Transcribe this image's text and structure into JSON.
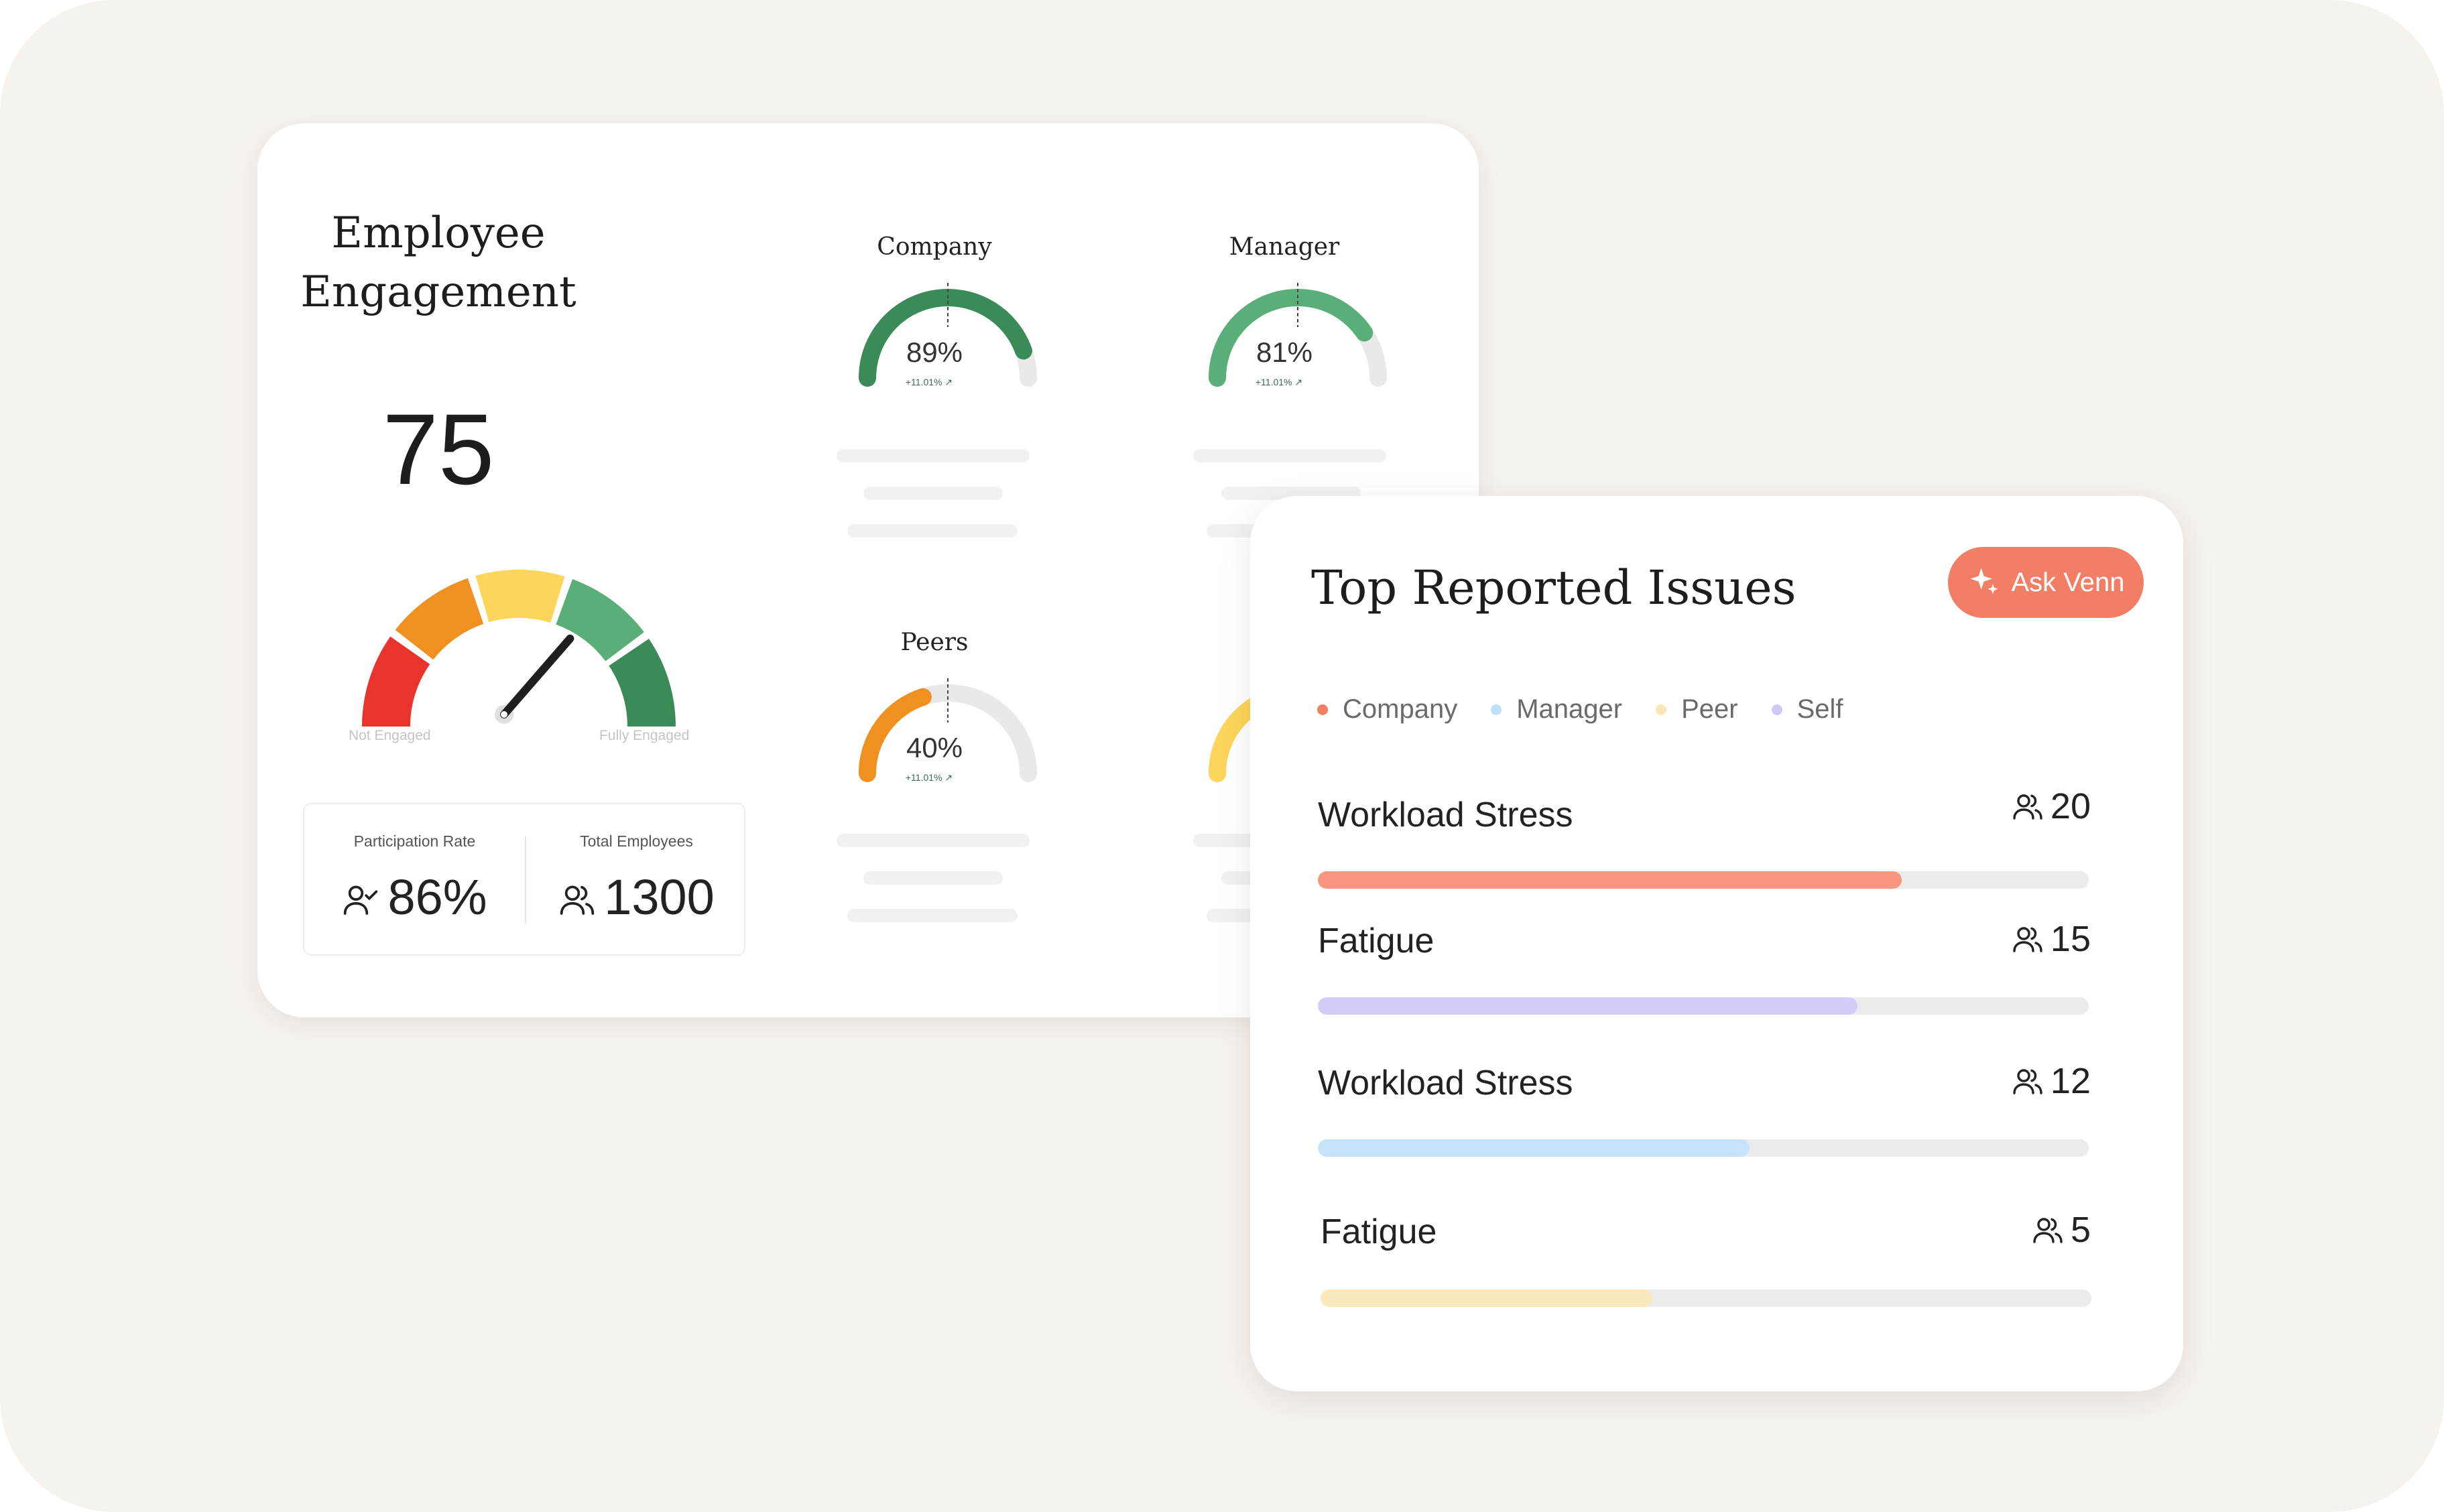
{
  "engagement": {
    "title_line1": "Employee",
    "title_line2": "Engagement",
    "score": "75",
    "gauge_level": 0.75,
    "gauge_min_label": "Not Engaged",
    "gauge_max_label": "Fully Engaged",
    "segment_colors": [
      "#e8342b",
      "#ef9020",
      "#fdd55a",
      "#5aae78",
      "#3a8b57"
    ],
    "participation_label": "Participation Rate",
    "participation_value": "86%",
    "total_label": "Total Employees",
    "total_value": "1300"
  },
  "mini_gauges": {
    "company": {
      "title": "Company",
      "pct": "89%",
      "value": 0.89,
      "delta": "+11.01%",
      "color": "#3a8b57"
    },
    "manager": {
      "title": "Manager",
      "pct": "81%",
      "value": 0.81,
      "delta": "+11.01%",
      "color": "#5aae78"
    },
    "peers": {
      "title": "Peers",
      "pct": "40%",
      "value": 0.4,
      "delta": "+11.01%",
      "color": "#ef9020"
    },
    "self": {
      "value": 0.55,
      "color": "#fdd55a"
    }
  },
  "issues": {
    "title": "Top Reported Issues",
    "ask_button": "Ask Venn",
    "legend": [
      {
        "label": "Company",
        "color": "#f27e66"
      },
      {
        "label": "Manager",
        "color": "#bfe0fb"
      },
      {
        "label": "Peer",
        "color": "#fbe6b8"
      },
      {
        "label": "Self",
        "color": "#cfc8f7"
      }
    ],
    "items": [
      {
        "label": "Workload Stress",
        "count": "20",
        "fraction": 0.757,
        "color": "#f9967f"
      },
      {
        "label": "Fatigue",
        "count": "15",
        "fraction": 0.7,
        "color": "#d2ccf8"
      },
      {
        "label": "Workload Stress",
        "count": "12",
        "fraction": 0.56,
        "color": "#c7e2fb"
      },
      {
        "label": "Fatigue",
        "count": "5",
        "fraction": 0.43,
        "color": "#fbe8bd"
      }
    ]
  }
}
